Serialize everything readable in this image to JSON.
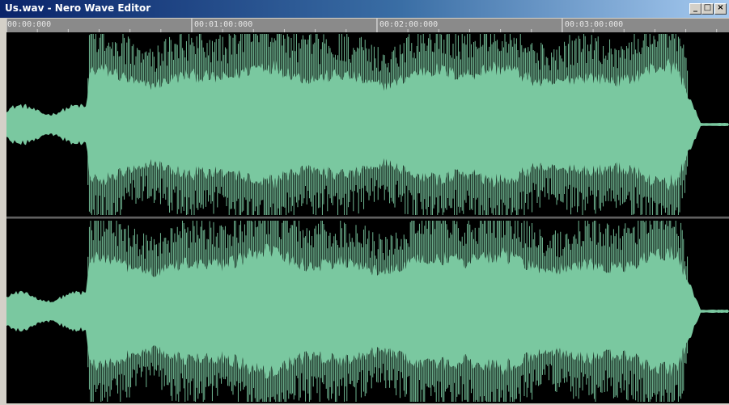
{
  "window": {
    "title": "Us.wav - Nero Wave Editor",
    "controls": {
      "minimize_glyph": "_",
      "maximize_glyph": "□",
      "close_glyph": "×"
    }
  },
  "timeline": {
    "labels": [
      "00:00:000",
      "00:01:00:000",
      "00:02:00:000",
      "00:03:00:000"
    ],
    "label_times_sec": [
      0,
      60,
      120,
      180
    ],
    "total_duration_sec": 234
  },
  "waveform": {
    "channels": [
      "left",
      "right"
    ],
    "color": "#7ac8a0",
    "background": "#000000",
    "note_levels": "normalized peak envelope over time; quiet intro until ~26s, loud body until ~217s, fade-out after"
  },
  "colors": {
    "titlebar_start": "#0a246a",
    "titlebar_end": "#a6caf0",
    "ruler": "#8a8a8a",
    "wave": "#7ac8a0"
  }
}
